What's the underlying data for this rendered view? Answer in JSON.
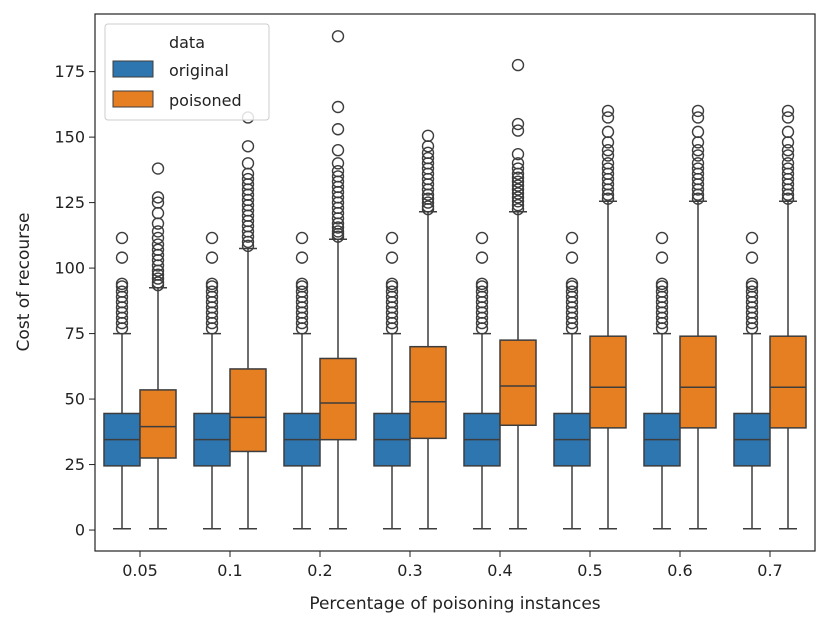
{
  "chart_data": {
    "type": "box",
    "title": "",
    "xlabel": "Percentage of poisoning instances",
    "ylabel": "Cost of recourse",
    "categories": [
      "0.05",
      "0.1",
      "0.2",
      "0.3",
      "0.4",
      "0.5",
      "0.6",
      "0.7"
    ],
    "yticks": [
      0,
      25,
      50,
      75,
      100,
      125,
      150,
      175
    ],
    "ylim": [
      -8,
      197
    ],
    "legend": {
      "title": "data",
      "position": "top-left"
    },
    "series": [
      {
        "name": "original",
        "color": "#2e76b0",
        "boxes": [
          {
            "whislo": 0.5,
            "q1": 24.5,
            "med": 34.5,
            "q3": 44.5,
            "whishi": 75,
            "fliers": [
              77,
              79,
              81,
              83,
              85,
              87,
              89,
              91,
              93,
              94,
              104,
              111.5
            ]
          },
          {
            "whislo": 0.5,
            "q1": 24.5,
            "med": 34.5,
            "q3": 44.5,
            "whishi": 75,
            "fliers": [
              77,
              79,
              81,
              83,
              85,
              87,
              89,
              91,
              93,
              94,
              104,
              111.5
            ]
          },
          {
            "whislo": 0.5,
            "q1": 24.5,
            "med": 34.5,
            "q3": 44.5,
            "whishi": 75,
            "fliers": [
              77,
              79,
              81,
              83,
              85,
              87,
              89,
              91,
              93,
              94,
              104,
              111.5
            ]
          },
          {
            "whislo": 0.5,
            "q1": 24.5,
            "med": 34.5,
            "q3": 44.5,
            "whishi": 75,
            "fliers": [
              77,
              79,
              81,
              83,
              85,
              87,
              89,
              91,
              93,
              94,
              104,
              111.5
            ]
          },
          {
            "whislo": 0.5,
            "q1": 24.5,
            "med": 34.5,
            "q3": 44.5,
            "whishi": 75,
            "fliers": [
              77,
              79,
              81,
              83,
              85,
              87,
              89,
              91,
              93,
              94,
              104,
              111.5
            ]
          },
          {
            "whislo": 0.5,
            "q1": 24.5,
            "med": 34.5,
            "q3": 44.5,
            "whishi": 75,
            "fliers": [
              77,
              79,
              81,
              83,
              85,
              87,
              89,
              91,
              93,
              94,
              104,
              111.5
            ]
          },
          {
            "whislo": 0.5,
            "q1": 24.5,
            "med": 34.5,
            "q3": 44.5,
            "whishi": 75,
            "fliers": [
              77,
              79,
              81,
              83,
              85,
              87,
              89,
              91,
              93,
              94,
              104,
              111.5
            ]
          },
          {
            "whislo": 0.5,
            "q1": 24.5,
            "med": 34.5,
            "q3": 44.5,
            "whishi": 75,
            "fliers": [
              77,
              79,
              81,
              83,
              85,
              87,
              89,
              91,
              93,
              94,
              104,
              111.5
            ]
          }
        ]
      },
      {
        "name": "poisoned",
        "color": "#e67e22",
        "boxes": [
          {
            "whislo": 0.5,
            "q1": 27.5,
            "med": 39.5,
            "q3": 53.5,
            "whishi": 92.5,
            "fliers": [
              93.5,
              94.5,
              96,
              97.5,
              99,
              101,
              103,
              105,
              107,
              109,
              111.5,
              114,
              117,
              121,
              125,
              127,
              138
            ]
          },
          {
            "whislo": 0.5,
            "q1": 30,
            "med": 43,
            "q3": 61.5,
            "whishi": 107.5,
            "fliers": [
              108.5,
              110,
              112,
              114,
              116,
              118,
              120,
              122,
              124,
              126,
              128,
              130,
              132,
              134,
              136,
              140,
              146.5,
              157.5
            ]
          },
          {
            "whislo": 0.5,
            "q1": 34.5,
            "med": 48.5,
            "q3": 65.5,
            "whishi": 111,
            "fliers": [
              112,
              113,
              114,
              115.5,
              117,
              119,
              121,
              123,
              125,
              127,
              129,
              131,
              133,
              135,
              137,
              140,
              145,
              153,
              161.5,
              188.5
            ]
          },
          {
            "whislo": 0.5,
            "q1": 35,
            "med": 49,
            "q3": 70,
            "whishi": 121.5,
            "fliers": [
              122.5,
              123.5,
              125,
              126.5,
              128,
              130,
              132,
              134,
              136,
              138,
              140,
              142,
              144,
              146.5,
              150.5
            ]
          },
          {
            "whislo": 0.5,
            "q1": 40,
            "med": 55,
            "q3": 72.5,
            "whishi": 121.5,
            "fliers": [
              122.5,
              124,
              125.5,
              127,
              128.5,
              130,
              131.5,
              133,
              134.5,
              136,
              138,
              140,
              143.5,
              152.5,
              155,
              177.5
            ]
          },
          {
            "whislo": 0.5,
            "q1": 39,
            "med": 54.5,
            "q3": 74,
            "whishi": 125.5,
            "fliers": [
              126.5,
              128,
              130,
              132,
              134,
              136,
              138,
              140,
              143,
              145,
              148,
              152,
              157.5,
              160
            ]
          },
          {
            "whislo": 0.5,
            "q1": 39,
            "med": 54.5,
            "q3": 74,
            "whishi": 125.5,
            "fliers": [
              126.5,
              128,
              130,
              132,
              134,
              136,
              138,
              140,
              143,
              145,
              148,
              152,
              157.5,
              160
            ]
          },
          {
            "whislo": 0.5,
            "q1": 39,
            "med": 54.5,
            "q3": 74,
            "whishi": 125.5,
            "fliers": [
              126.5,
              128,
              130,
              132,
              134,
              136,
              138,
              140,
              143,
              145,
              148,
              152,
              157.5,
              160
            ]
          }
        ]
      }
    ]
  }
}
